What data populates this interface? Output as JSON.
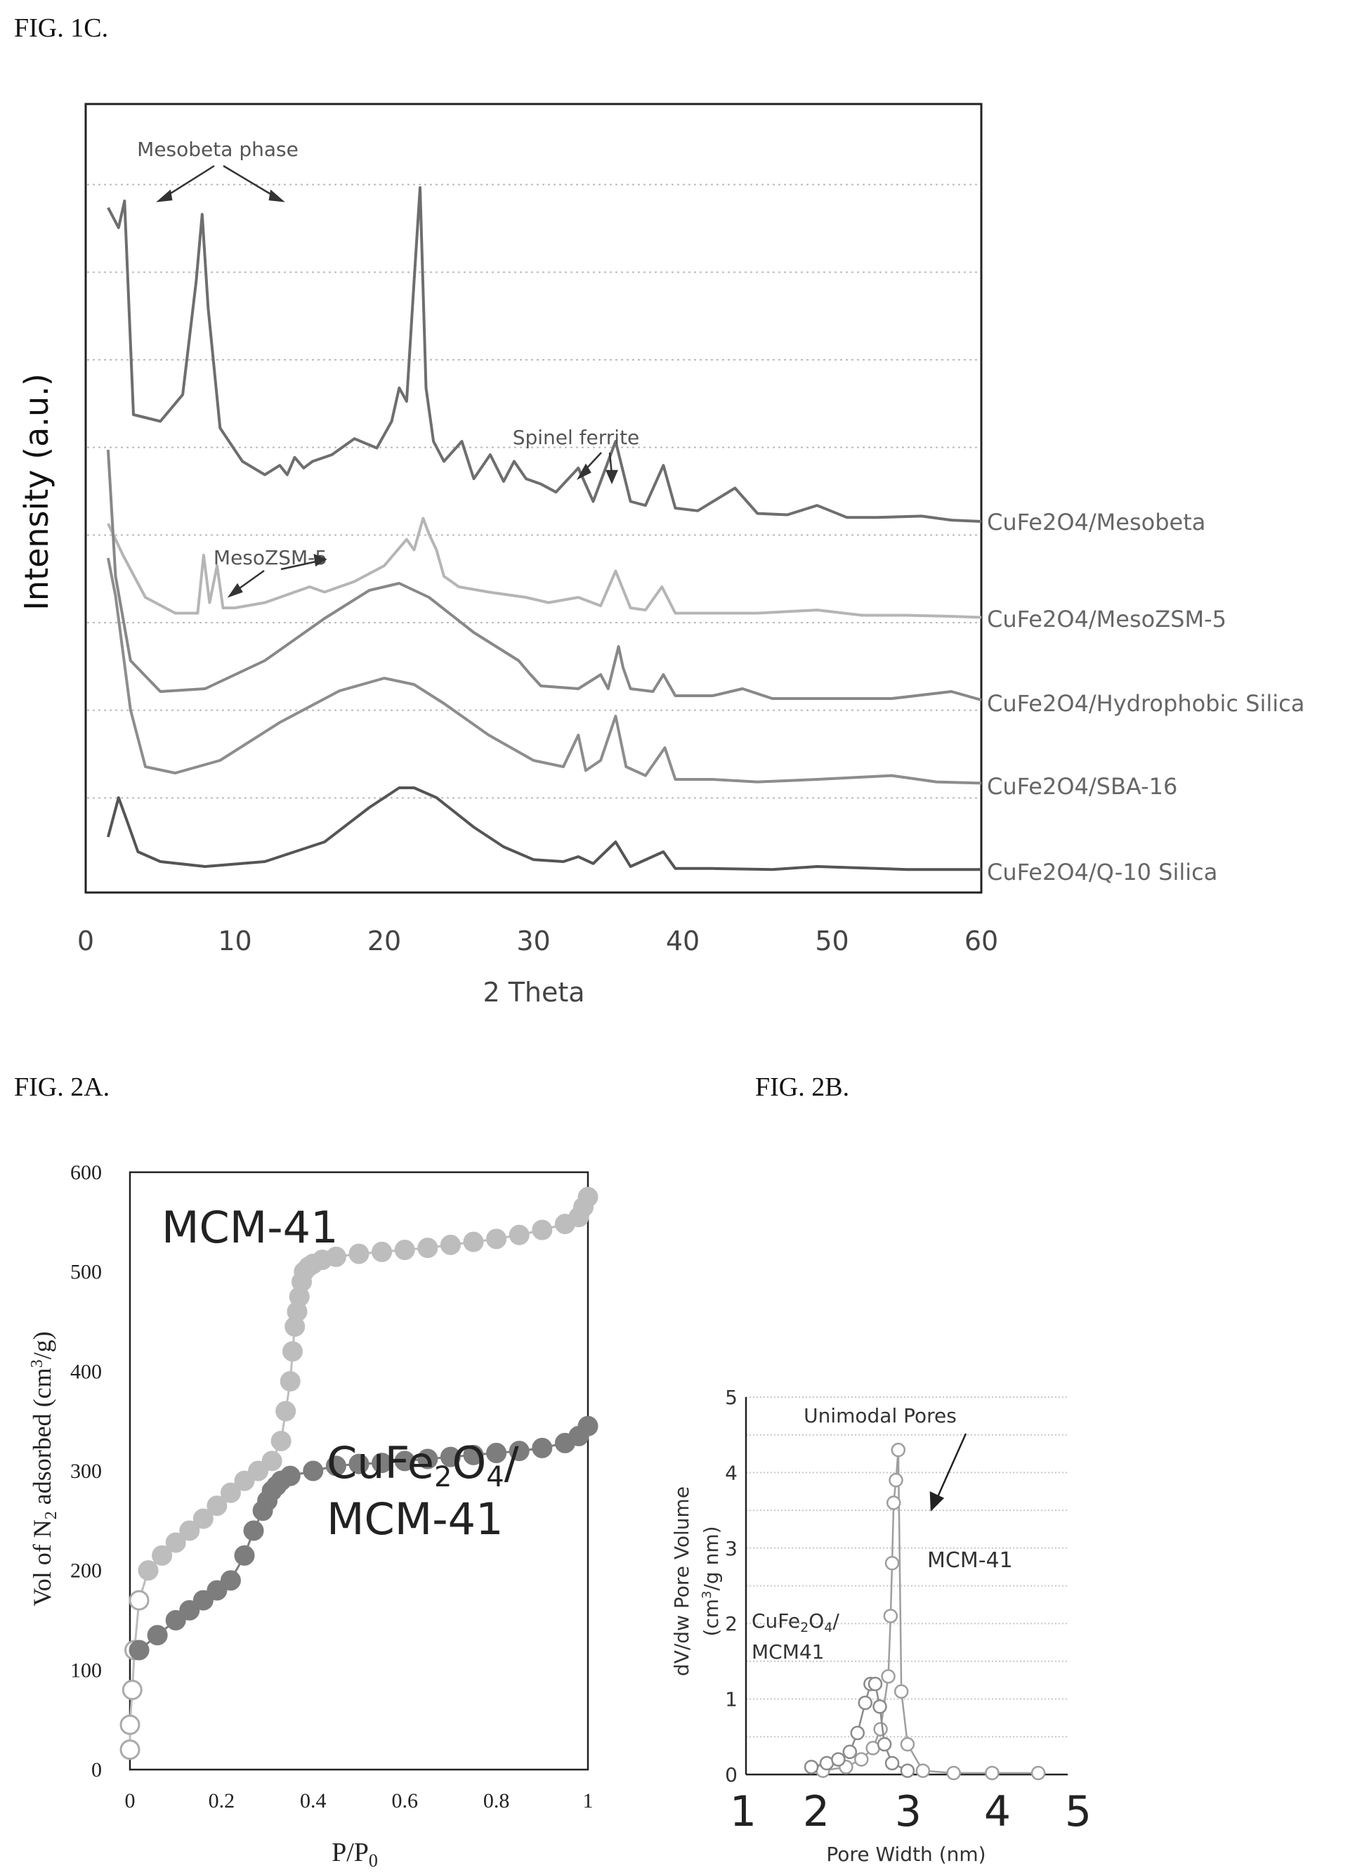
{
  "figures": {
    "fig1c": "FIG. 1C.",
    "fig2a": "FIG. 2A.",
    "fig2b": "FIG. 2B."
  },
  "chart_data": [
    {
      "type": "line",
      "id": "xrd",
      "xlabel": "2 Theta",
      "ylabel": "Intensity (a.u.)",
      "xlim": [
        0,
        60
      ],
      "xticks": [
        0,
        10,
        20,
        30,
        40,
        50,
        60
      ],
      "grid": "horizontal dotted",
      "series": [
        {
          "name": "CuFe2O4/Mesobeta",
          "color": "#6e6e6e",
          "x": [
            1.5,
            2.2,
            2.6,
            3.2,
            5,
            6.5,
            7.4,
            7.8,
            8.2,
            9,
            10.5,
            12,
            13,
            13.5,
            14,
            14.6,
            15.2,
            16.5,
            18,
            19.5,
            20.5,
            21,
            21.5,
            22,
            22.4,
            22.8,
            23.3,
            24,
            25.2,
            26,
            27.1,
            28,
            28.7,
            29.5,
            30.5,
            31.5,
            33,
            34,
            35.5,
            36.5,
            37.5,
            38.7,
            39.5,
            41,
            43.5,
            45,
            47,
            49,
            51,
            53,
            56,
            58,
            60
          ],
          "y": [
            2.35,
            2.2,
            2.4,
            0.8,
            0.75,
            0.95,
            1.8,
            2.3,
            1.6,
            0.7,
            0.45,
            0.35,
            0.42,
            0.35,
            0.48,
            0.4,
            0.45,
            0.5,
            0.62,
            0.55,
            0.75,
            1.0,
            0.9,
            1.8,
            2.5,
            1.0,
            0.6,
            0.45,
            0.6,
            0.32,
            0.5,
            0.3,
            0.45,
            0.32,
            0.28,
            0.22,
            0.4,
            0.15,
            0.6,
            0.15,
            0.12,
            0.42,
            0.1,
            0.08,
            0.25,
            0.06,
            0.05,
            0.12,
            0.03,
            0.03,
            0.04,
            0.01,
            0.0
          ]
        },
        {
          "name": "CuFe2O4/MesoZSM-5",
          "color": "#b5b5b5",
          "x": [
            1.5,
            2.5,
            4,
            6,
            7.5,
            7.9,
            8.3,
            8.8,
            9.2,
            10,
            12,
            14,
            15,
            16,
            18,
            20,
            21.5,
            22,
            22.6,
            23,
            23.5,
            24,
            25,
            27,
            29.5,
            31,
            33,
            34.5,
            35.5,
            36.5,
            37.5,
            38.6,
            39.5,
            42,
            45,
            49,
            52,
            55,
            58,
            60
          ],
          "y": [
            0.9,
            0.6,
            0.2,
            0.05,
            0.05,
            0.6,
            0.15,
            0.5,
            0.1,
            0.1,
            0.15,
            0.25,
            0.3,
            0.25,
            0.35,
            0.5,
            0.75,
            0.65,
            0.95,
            0.8,
            0.65,
            0.4,
            0.3,
            0.25,
            0.2,
            0.15,
            0.2,
            0.12,
            0.45,
            0.1,
            0.08,
            0.3,
            0.05,
            0.05,
            0.05,
            0.08,
            0.03,
            0.03,
            0.02,
            0.01
          ]
        },
        {
          "name": "CuFe2O4/Hydrophobic Silica",
          "color": "#888888",
          "x": [
            1.5,
            2,
            3,
            5,
            8,
            12,
            16,
            19,
            21,
            23,
            26,
            29,
            29.8,
            30.5,
            33,
            34.5,
            35,
            35.7,
            36,
            36.5,
            38,
            38.7,
            39.5,
            42,
            44,
            46,
            50,
            54,
            58,
            60
          ],
          "y": [
            1.8,
            0.9,
            0.3,
            0.08,
            0.1,
            0.3,
            0.6,
            0.8,
            0.85,
            0.75,
            0.5,
            0.3,
            0.2,
            0.12,
            0.1,
            0.2,
            0.1,
            0.4,
            0.25,
            0.1,
            0.08,
            0.2,
            0.05,
            0.05,
            0.1,
            0.03,
            0.03,
            0.03,
            0.08,
            0.02
          ]
        },
        {
          "name": "CuFe2O4/SBA-16",
          "color": "#8d8d8d",
          "x": [
            1.5,
            2,
            3,
            4,
            6,
            9,
            13,
            17,
            20,
            22,
            24,
            27,
            30,
            32,
            33,
            33.5,
            34.5,
            35.5,
            36.2,
            37.5,
            38.8,
            39.5,
            42,
            45,
            49,
            54,
            57,
            60
          ],
          "y": [
            1.8,
            1.5,
            0.6,
            0.15,
            0.1,
            0.2,
            0.5,
            0.75,
            0.85,
            0.8,
            0.65,
            0.4,
            0.2,
            0.15,
            0.4,
            0.12,
            0.2,
            0.55,
            0.15,
            0.08,
            0.3,
            0.05,
            0.05,
            0.03,
            0.05,
            0.08,
            0.03,
            0.02
          ]
        },
        {
          "name": "CuFe2O4/Q-10 Silica",
          "color": "#555555",
          "x": [
            1.5,
            2.2,
            2.8,
            3.5,
            5,
            8,
            12,
            16,
            19,
            21,
            22,
            23.5,
            26,
            28,
            30,
            32,
            33,
            34,
            35.5,
            36.5,
            38.7,
            39.5,
            42,
            46,
            49,
            55,
            60
          ],
          "y": [
            0.35,
            0.75,
            0.5,
            0.2,
            0.1,
            0.05,
            0.1,
            0.3,
            0.65,
            0.85,
            0.85,
            0.75,
            0.45,
            0.25,
            0.12,
            0.1,
            0.15,
            0.08,
            0.3,
            0.05,
            0.2,
            0.03,
            0.03,
            0.02,
            0.05,
            0.02,
            0.02
          ]
        }
      ],
      "annotations": [
        {
          "text": "Mesobeta phase",
          "x": 8.5
        },
        {
          "text": "Spinel ferrite",
          "x": 34
        },
        {
          "text": "MesoZSM-5",
          "x": 12.5
        }
      ]
    },
    {
      "type": "scatter",
      "id": "isotherm",
      "xlabel": "P/P",
      "xlabel_sub": "0",
      "ylabel_main": "Vol of N",
      "ylabel_sub": "2",
      "ylabel_rest": " adsorbed (cm",
      "ylabel_sup": "3",
      "ylabel_end": "/g)",
      "xlim": [
        0,
        1
      ],
      "ylim": [
        0,
        600
      ],
      "xticks": [
        0,
        0.2,
        0.4,
        0.6,
        0.8,
        1
      ],
      "xtick_labels": [
        "0",
        "0.2",
        "0.4",
        "0.6",
        "0.8",
        "1"
      ],
      "yticks": [
        0,
        100,
        200,
        300,
        400,
        500,
        600
      ],
      "series": [
        {
          "name": "MCM-41",
          "color": "#bdbdbd",
          "x": [
            0.0,
            0.0,
            0.005,
            0.01,
            0.02,
            0.04,
            0.07,
            0.1,
            0.13,
            0.16,
            0.19,
            0.22,
            0.25,
            0.28,
            0.31,
            0.33,
            0.34,
            0.35,
            0.355,
            0.36,
            0.365,
            0.37,
            0.375,
            0.38,
            0.39,
            0.4,
            0.42,
            0.45,
            0.5,
            0.55,
            0.6,
            0.65,
            0.7,
            0.75,
            0.8,
            0.85,
            0.9,
            0.95,
            0.98,
            0.99,
            1.0
          ],
          "y": [
            20,
            45,
            80,
            120,
            170,
            200,
            215,
            228,
            240,
            252,
            265,
            278,
            290,
            300,
            310,
            330,
            360,
            390,
            420,
            445,
            460,
            475,
            490,
            500,
            505,
            508,
            512,
            515,
            518,
            520,
            522,
            524,
            527,
            530,
            533,
            537,
            542,
            548,
            555,
            565,
            575
          ]
        },
        {
          "name": "CuFe2O4/ MCM-41",
          "color": "#7d7d7d",
          "x": [
            0.02,
            0.06,
            0.1,
            0.13,
            0.16,
            0.19,
            0.22,
            0.25,
            0.27,
            0.29,
            0.3,
            0.31,
            0.32,
            0.33,
            0.35,
            0.4,
            0.45,
            0.5,
            0.55,
            0.6,
            0.65,
            0.7,
            0.75,
            0.8,
            0.85,
            0.9,
            0.95,
            0.98,
            1.0
          ],
          "y": [
            120,
            135,
            150,
            160,
            170,
            180,
            190,
            215,
            240,
            260,
            270,
            280,
            285,
            290,
            295,
            300,
            305,
            307,
            308,
            310,
            312,
            314,
            316,
            318,
            320,
            323,
            328,
            335,
            345
          ]
        }
      ],
      "labels": [
        {
          "text": "MCM-41"
        },
        {
          "text_main": "CuFe",
          "sub1": "2",
          "mid": "O",
          "sub2": "4",
          "end": "/"
        },
        {
          "text": "MCM-41"
        }
      ]
    },
    {
      "type": "scatter",
      "id": "pore",
      "xlabel": "Pore Width (nm)",
      "ylabel_line1": "dV/dw Pore Volume",
      "ylabel_line2_pre": "(cm",
      "ylabel_line2_sup": "3",
      "ylabel_line2_end": "/g nm)",
      "xlim": [
        1,
        5
      ],
      "ylim": [
        0,
        5
      ],
      "xticks": [
        1,
        2,
        3,
        4,
        5
      ],
      "yticks": [
        0,
        1,
        2,
        3,
        4,
        5
      ],
      "series": [
        {
          "name": "MCM-41",
          "color": "#9e9e9e",
          "x": [
            2.0,
            2.3,
            2.5,
            2.65,
            2.75,
            2.85,
            2.88,
            2.9,
            2.92,
            2.95,
            2.98,
            3.02,
            3.1,
            3.3,
            3.7,
            4.2,
            4.8
          ],
          "y": [
            0.05,
            0.1,
            0.2,
            0.35,
            0.6,
            1.3,
            2.1,
            2.8,
            3.6,
            3.9,
            4.3,
            1.1,
            0.4,
            0.05,
            0.02,
            0.02,
            0.02
          ]
        },
        {
          "name": "CuFe2O4/ MCM41",
          "color": "#8a8a8a",
          "x": [
            1.85,
            2.05,
            2.2,
            2.35,
            2.45,
            2.55,
            2.62,
            2.68,
            2.74,
            2.8,
            2.9,
            3.1
          ],
          "y": [
            0.1,
            0.15,
            0.2,
            0.3,
            0.55,
            0.95,
            1.2,
            1.2,
            0.9,
            0.4,
            0.15,
            0.05
          ]
        }
      ],
      "annotations": [
        {
          "text": "Unimodal Pores"
        },
        {
          "text": "MCM-41"
        },
        {
          "text_main": "CuFe",
          "sub1": "2",
          "mid": "O",
          "sub2": "4",
          "end": "/"
        },
        {
          "text": "MCM41"
        }
      ]
    }
  ]
}
